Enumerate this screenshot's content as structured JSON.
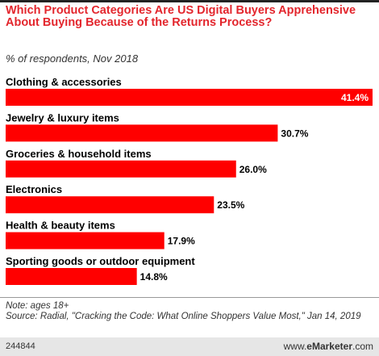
{
  "header": {
    "title": "Which Product Categories Are US Digital Buyers Apprehensive About Buying Because of the Returns Process?",
    "subtitle": "% of respondents, Nov 2018"
  },
  "chart_data": {
    "type": "bar",
    "orientation": "horizontal",
    "title": "Which Product Categories Are US Digital Buyers Apprehensive About Buying Because of the Returns Process?",
    "subtitle": "% of respondents, Nov 2018",
    "categories": [
      "Clothing & accessories",
      "Jewelry & luxury items",
      "Groceries & household items",
      "Electronics",
      "Health & beauty items",
      "Sporting goods or outdoor equipment"
    ],
    "values": [
      41.4,
      30.7,
      26.0,
      23.5,
      17.9,
      14.8
    ],
    "value_labels": [
      "41.4%",
      "30.7%",
      "26.0%",
      "23.5%",
      "17.9%",
      "14.8%"
    ],
    "xlim": [
      0,
      41.4
    ],
    "bar_color": "#ff0000",
    "grid": false,
    "legend": "none"
  },
  "footer": {
    "note": "Note: ages 18+",
    "source": "Source: Radial, \"Cracking the Code: What Online Shoppers Value Most,\" Jan 14, 2019",
    "chart_id": "244844",
    "credit_prefix": "www.",
    "credit_brand": "eMarketer",
    "credit_suffix": ".com"
  },
  "colors": {
    "title": "#e3262d",
    "bar": "#ff0000",
    "text": "#000000",
    "footer_bg": "#e6e6e6"
  }
}
